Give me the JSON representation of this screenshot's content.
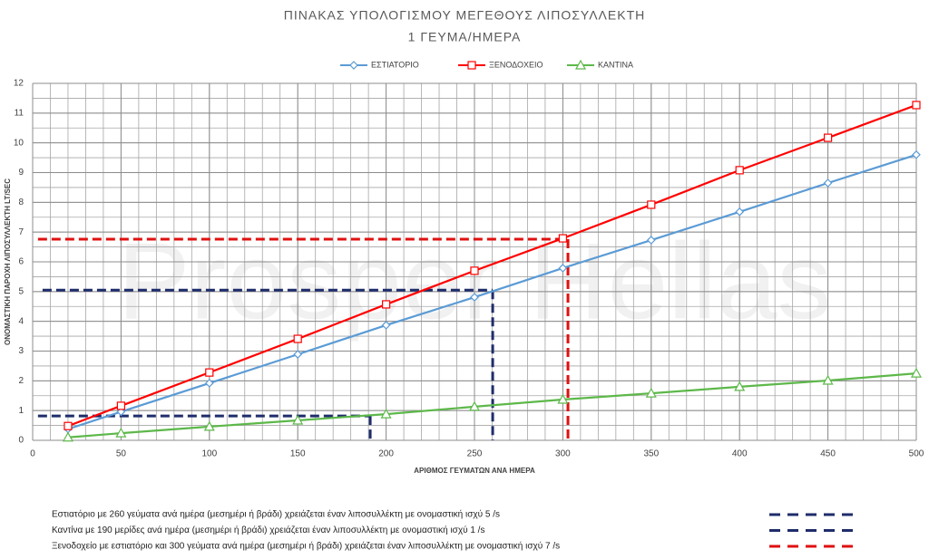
{
  "chart_data": {
    "type": "line",
    "title": "ΠΙΝΑΚΑΣ ΥΠΟΛΟΓΙΣΜΟΥ ΜΕΓΕΘΟΥΣ ΛΙΠΟΣΥΛΛΕΚΤΗ",
    "subtitle": "1 ΓΕΥΜΑ/ΗΜΕΡΑ",
    "x_label": "ΑΡΙΘΜΟΣ ΓΕΥΜΑΤΩΝ ΑΝΑ ΗΜΕΡΑ",
    "y_label": "ΟΝΟΜΑΣΤΙΚΗ ΠΑΡΟΧΗ ΛΙΠΟΣΥΛΛΕΚΤΗ  LT/SEC",
    "watermark": "Prosper Hellas",
    "x": [
      20,
      50,
      100,
      150,
      200,
      250,
      300,
      350,
      400,
      450,
      500
    ],
    "series": [
      {
        "name": "ΕΣΤΙΑΤΟΡΙΟ",
        "color": "#5b9bd5",
        "marker": "diamond",
        "values": [
          0.38,
          0.96,
          1.92,
          2.89,
          3.87,
          4.81,
          5.79,
          6.73,
          7.68,
          8.65,
          9.6
        ]
      },
      {
        "name": "ΞΕΝΟΔΟΧΕΙΟ",
        "color": "#ff0000",
        "marker": "square",
        "values": [
          0.48,
          1.16,
          2.28,
          3.41,
          4.57,
          5.7,
          6.79,
          7.92,
          9.08,
          10.17,
          11.27
        ]
      },
      {
        "name": "ΚΑΝΤΙΝΑ",
        "color": "#5db84a",
        "marker": "triangle",
        "values": [
          0.1,
          0.24,
          0.46,
          0.67,
          0.88,
          1.13,
          1.37,
          1.58,
          1.8,
          2.01,
          2.25
        ]
      }
    ],
    "xlim": [
      0,
      500
    ],
    "xticks": [
      0,
      50,
      100,
      150,
      200,
      250,
      300,
      350,
      400,
      450,
      500
    ],
    "ylim": [
      0,
      12
    ],
    "yticks": [
      0,
      1,
      2,
      3,
      4,
      5,
      6,
      7,
      8,
      9,
      10,
      11,
      12
    ],
    "grid": true,
    "x_minor_step": 10,
    "y_minor_step": 0.5,
    "legend": "top",
    "reference_lines": [
      {
        "x_start": 5.6,
        "x": 260.3,
        "y": 5.05,
        "color": "#1f2d6b"
      },
      {
        "x_start": 3,
        "x": 191,
        "y": 0.82,
        "color": "#1f2d6b"
      },
      {
        "x_start": 3,
        "x": 302.9,
        "y": 6.76,
        "color": "#e01010"
      }
    ],
    "notes": [
      {
        "text": "Εστιατόριο με 260 γεύματα ανά ημέρα (μεσημέρι ή βράδι) χρειάζεται έναν λιποσυλλέκτη με ονομαστική ισχύ 5 /s",
        "color": "#1f2d6b"
      },
      {
        "text": "Καντίνα με 190 μερίδες ανά ημέρα (μεσημέρι ή βράδι) χρειάζεται έναν λιποσυλλέκτη με ονομαστική ισχύ 1 /s",
        "color": "#1f2d6b"
      },
      {
        "text": "Ξενοδοχείο με εστιατόριο και 300 γεύματα ανά ημέρα (μεσημέρι ή βράδι) χρειάζεται έναν λιποσυλλέκτη με ονομαστική ισχύ 7 /s",
        "color": "#e01010"
      }
    ]
  }
}
